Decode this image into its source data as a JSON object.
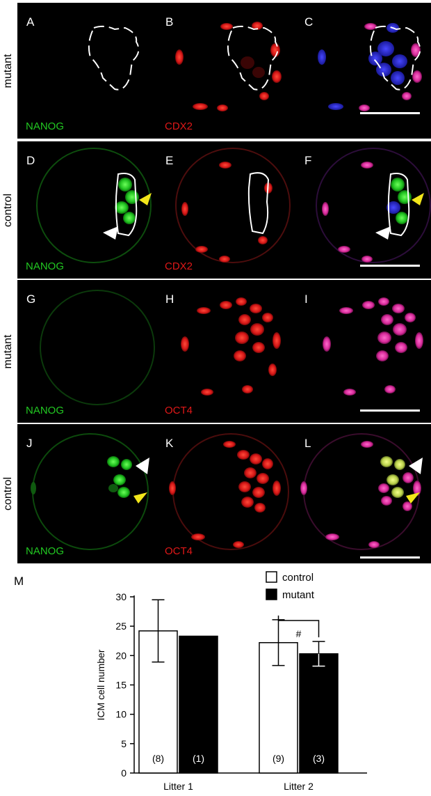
{
  "micrographs": {
    "rows": [
      {
        "row_label": "mutant",
        "panels": [
          {
            "letter": "A",
            "channel": "NANOG",
            "channel_color": "#22c822"
          },
          {
            "letter": "B",
            "channel": "CDX2",
            "channel_color": "#e01818"
          },
          {
            "letter": "C",
            "channel": "",
            "channel_color": "#ffffff"
          }
        ]
      },
      {
        "row_label": "control",
        "panels": [
          {
            "letter": "D",
            "channel": "NANOG",
            "channel_color": "#22c822"
          },
          {
            "letter": "E",
            "channel": "CDX2",
            "channel_color": "#e01818"
          },
          {
            "letter": "F",
            "channel": "",
            "channel_color": "#ffffff"
          }
        ]
      },
      {
        "row_label": "mutant",
        "panels": [
          {
            "letter": "G",
            "channel": "NANOG",
            "channel_color": "#22c822"
          },
          {
            "letter": "H",
            "channel": "OCT4",
            "channel_color": "#e01818"
          },
          {
            "letter": "I",
            "channel": "",
            "channel_color": "#ffffff"
          }
        ]
      },
      {
        "row_label": "control",
        "panels": [
          {
            "letter": "J",
            "channel": "NANOG",
            "channel_color": "#22c822"
          },
          {
            "letter": "K",
            "channel": "OCT4",
            "channel_color": "#e01818"
          },
          {
            "letter": "L",
            "channel": "",
            "channel_color": "#ffffff"
          }
        ]
      }
    ]
  },
  "chart_data": {
    "type": "bar",
    "panel_letter": "M",
    "categories": [
      "Litter 1",
      "Litter 2"
    ],
    "series": [
      {
        "name": "control",
        "color": "#ffffff",
        "values": [
          24.2,
          22.2
        ],
        "error": [
          5.3,
          3.9
        ],
        "n_labels": [
          "(8)",
          "(9)"
        ]
      },
      {
        "name": "mutant",
        "color": "#000000",
        "values": [
          23.3,
          20.3
        ],
        "error": [
          null,
          2.1
        ],
        "n_labels": [
          "(1)",
          "(3)"
        ]
      }
    ],
    "ylabel": "ICM cell number",
    "ylim": [
      0,
      30
    ],
    "yticks": [
      "0",
      "5",
      "10",
      "15",
      "20",
      "25",
      "30"
    ],
    "annotation": "#",
    "legend_position": "top-right"
  }
}
